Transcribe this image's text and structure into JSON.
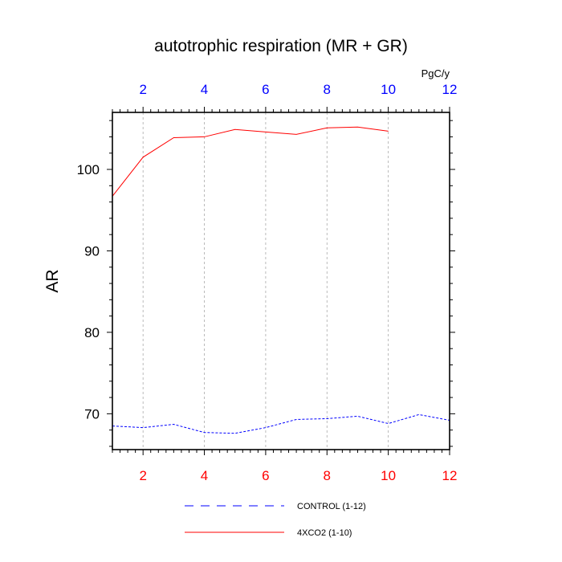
{
  "chart_data": {
    "type": "line",
    "title": "autotrophic respiration (MR + GR)",
    "ylabel": "AR",
    "units": "PgC/y",
    "xlim": [
      1,
      12
    ],
    "ylim": [
      65.6,
      107.0
    ],
    "x_ticks": [
      2,
      4,
      6,
      8,
      10,
      12
    ],
    "y_ticks": [
      70,
      80,
      90,
      100
    ],
    "x_tick_labels_bottom": [
      "2",
      "4",
      "6",
      "8",
      "10",
      "12"
    ],
    "x_tick_labels_top": [
      "2",
      "4",
      "6",
      "8",
      "10",
      "12"
    ],
    "y_tick_labels": [
      "70",
      "80",
      "90",
      "100"
    ],
    "grid": "vertical dashed at major x ticks",
    "legend_position": "bottom",
    "series": [
      {
        "name": "CONTROL (1-12)",
        "color": "#0000ff",
        "style": "dashed",
        "x": [
          1,
          2,
          3,
          4,
          5,
          6,
          7,
          8,
          9,
          10,
          11,
          12
        ],
        "y": [
          68.5,
          68.3,
          68.7,
          67.7,
          67.6,
          68.3,
          69.3,
          69.4,
          69.7,
          68.8,
          69.9,
          69.2
        ]
      },
      {
        "name": "4XCO2 (1-10)",
        "color": "#ff0000",
        "style": "solid",
        "x": [
          1,
          2,
          3,
          4,
          5,
          6,
          7,
          8,
          9,
          10
        ],
        "y": [
          96.7,
          101.5,
          103.9,
          104.0,
          104.9,
          104.6,
          104.3,
          105.1,
          105.2,
          104.7
        ]
      }
    ],
    "colors": {
      "bottom_tick_labels": "#ff0000",
      "top_tick_labels": "#0000ff",
      "frame": "#000000",
      "grid": "#aaaaaa"
    }
  }
}
